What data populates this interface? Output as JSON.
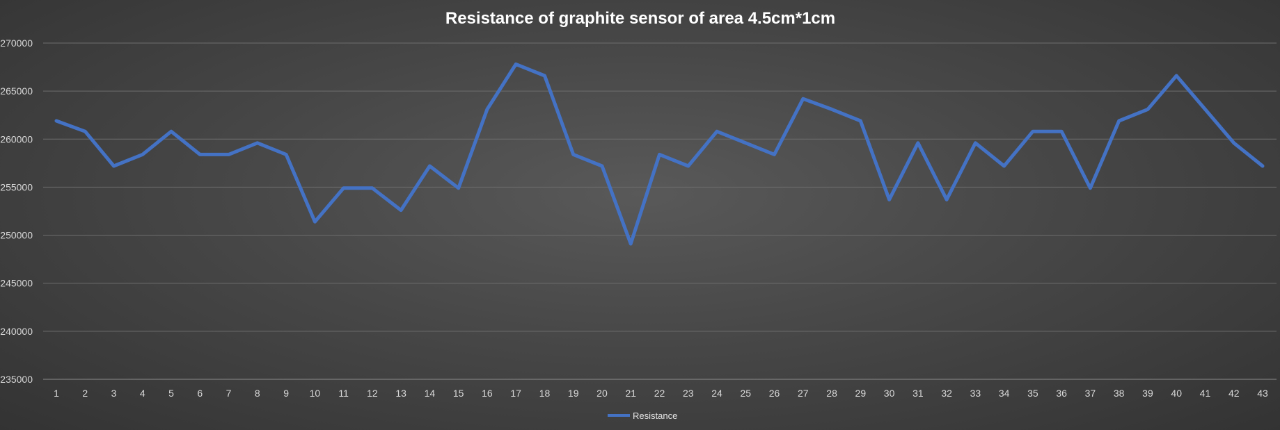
{
  "chart_data": {
    "type": "line",
    "title": "Resistance of graphite sensor of area 4.5cm*1cm",
    "xlabel": "",
    "ylabel": "",
    "x": [
      1,
      2,
      3,
      4,
      5,
      6,
      7,
      8,
      9,
      10,
      11,
      12,
      13,
      14,
      15,
      16,
      17,
      18,
      19,
      20,
      21,
      22,
      23,
      24,
      25,
      26,
      27,
      28,
      29,
      30,
      31,
      32,
      33,
      34,
      35,
      36,
      37,
      38,
      39,
      40,
      41,
      42,
      43
    ],
    "series": [
      {
        "name": "Resistance",
        "color": "#4472c4",
        "values": [
          261900,
          260800,
          257200,
          258400,
          260800,
          258400,
          258400,
          259600,
          258400,
          251400,
          254900,
          254900,
          252600,
          257200,
          254900,
          263100,
          267800,
          266600,
          258400,
          257200,
          249100,
          258400,
          257200,
          260800,
          259600,
          258400,
          264200,
          263100,
          261900,
          253700,
          259600,
          253700,
          259600,
          257200,
          260800,
          260800,
          254900,
          261900,
          263100,
          266600,
          263100,
          259600,
          257200
        ]
      }
    ],
    "ylim": [
      235000,
      270000
    ],
    "y_ticks": [
      235000,
      240000,
      245000,
      250000,
      255000,
      260000,
      265000,
      270000
    ],
    "grid": true,
    "legend_position": "bottom"
  }
}
